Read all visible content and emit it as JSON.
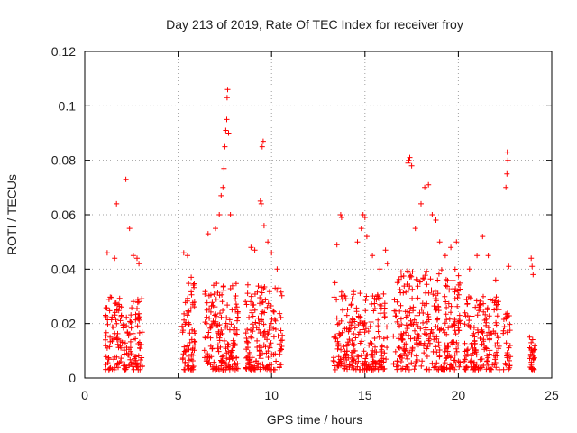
{
  "chart_data": {
    "type": "scatter",
    "title": "Day 213 of 2019, Rate Of TEC Index for receiver froy",
    "xlabel": "GPS time / hours",
    "ylabel": "ROTI / TECUs",
    "xlim": [
      0,
      25
    ],
    "ylim": [
      0,
      0.12
    ],
    "xticks": [
      0,
      5,
      10,
      15,
      20,
      25
    ],
    "yticks": [
      0,
      0.02,
      0.04,
      0.06,
      0.08,
      0.1,
      0.12
    ],
    "xtick_labels": [
      "0",
      "5",
      "10",
      "15",
      "20",
      "25"
    ],
    "ytick_labels": [
      "0",
      "0.02",
      "0.04",
      "0.06",
      "0.08",
      "0.1",
      "0.12"
    ],
    "grid": true,
    "marker": "+",
    "color": "#ff0000",
    "series": [
      {
        "name": "ROTI",
        "segments": [
          {
            "start": 1.1,
            "end": 3.1,
            "base_max": 0.03,
            "points": 160
          },
          {
            "start": 5.2,
            "end": 5.9,
            "base_max": 0.035,
            "points": 70
          },
          {
            "start": 6.4,
            "end": 8.2,
            "base_max": 0.035,
            "points": 170
          },
          {
            "start": 8.6,
            "end": 10.6,
            "base_max": 0.035,
            "points": 170
          },
          {
            "start": 13.3,
            "end": 16.2,
            "base_max": 0.032,
            "points": 240
          },
          {
            "start": 16.5,
            "end": 20.1,
            "base_max": 0.04,
            "points": 320
          },
          {
            "start": 20.3,
            "end": 22.2,
            "base_max": 0.03,
            "points": 160
          },
          {
            "start": 22.4,
            "end": 22.8,
            "base_max": 0.025,
            "points": 30
          },
          {
            "start": 23.8,
            "end": 24.1,
            "base_max": 0.015,
            "points": 30
          }
        ],
        "spikes": [
          [
            1.2,
            0.046
          ],
          [
            1.6,
            0.044
          ],
          [
            1.7,
            0.064
          ],
          [
            2.2,
            0.073
          ],
          [
            2.4,
            0.055
          ],
          [
            2.6,
            0.045
          ],
          [
            2.8,
            0.044
          ],
          [
            2.9,
            0.042
          ],
          [
            5.3,
            0.046
          ],
          [
            5.5,
            0.045
          ],
          [
            5.7,
            0.037
          ],
          [
            6.6,
            0.053
          ],
          [
            7.0,
            0.055
          ],
          [
            7.2,
            0.06
          ],
          [
            7.3,
            0.067
          ],
          [
            7.4,
            0.07
          ],
          [
            7.45,
            0.077
          ],
          [
            7.5,
            0.085
          ],
          [
            7.55,
            0.091
          ],
          [
            7.6,
            0.095
          ],
          [
            7.62,
            0.103
          ],
          [
            7.65,
            0.106
          ],
          [
            7.7,
            0.09
          ],
          [
            7.8,
            0.06
          ],
          [
            8.9,
            0.048
          ],
          [
            9.1,
            0.047
          ],
          [
            9.4,
            0.065
          ],
          [
            9.45,
            0.064
          ],
          [
            9.5,
            0.085
          ],
          [
            9.55,
            0.087
          ],
          [
            9.6,
            0.056
          ],
          [
            9.8,
            0.05
          ],
          [
            10.0,
            0.046
          ],
          [
            10.3,
            0.04
          ],
          [
            13.4,
            0.035
          ],
          [
            13.5,
            0.049
          ],
          [
            13.7,
            0.06
          ],
          [
            13.75,
            0.059
          ],
          [
            14.6,
            0.05
          ],
          [
            14.8,
            0.055
          ],
          [
            14.9,
            0.06
          ],
          [
            15.0,
            0.059
          ],
          [
            15.1,
            0.052
          ],
          [
            15.4,
            0.045
          ],
          [
            15.8,
            0.04
          ],
          [
            16.1,
            0.047
          ],
          [
            16.2,
            0.042
          ],
          [
            17.3,
            0.079
          ],
          [
            17.35,
            0.08
          ],
          [
            17.4,
            0.081
          ],
          [
            17.5,
            0.078
          ],
          [
            17.7,
            0.055
          ],
          [
            18.0,
            0.064
          ],
          [
            18.2,
            0.07
          ],
          [
            18.4,
            0.071
          ],
          [
            18.6,
            0.06
          ],
          [
            18.8,
            0.058
          ],
          [
            19.0,
            0.05
          ],
          [
            19.3,
            0.045
          ],
          [
            19.6,
            0.048
          ],
          [
            19.9,
            0.05
          ],
          [
            20.6,
            0.04
          ],
          [
            21.0,
            0.045
          ],
          [
            21.3,
            0.052
          ],
          [
            21.6,
            0.045
          ],
          [
            22.0,
            0.036
          ],
          [
            22.55,
            0.07
          ],
          [
            22.6,
            0.075
          ],
          [
            22.62,
            0.083
          ],
          [
            22.65,
            0.08
          ],
          [
            22.7,
            0.041
          ],
          [
            23.9,
            0.044
          ],
          [
            23.95,
            0.041
          ],
          [
            24.0,
            0.038
          ]
        ]
      }
    ]
  }
}
